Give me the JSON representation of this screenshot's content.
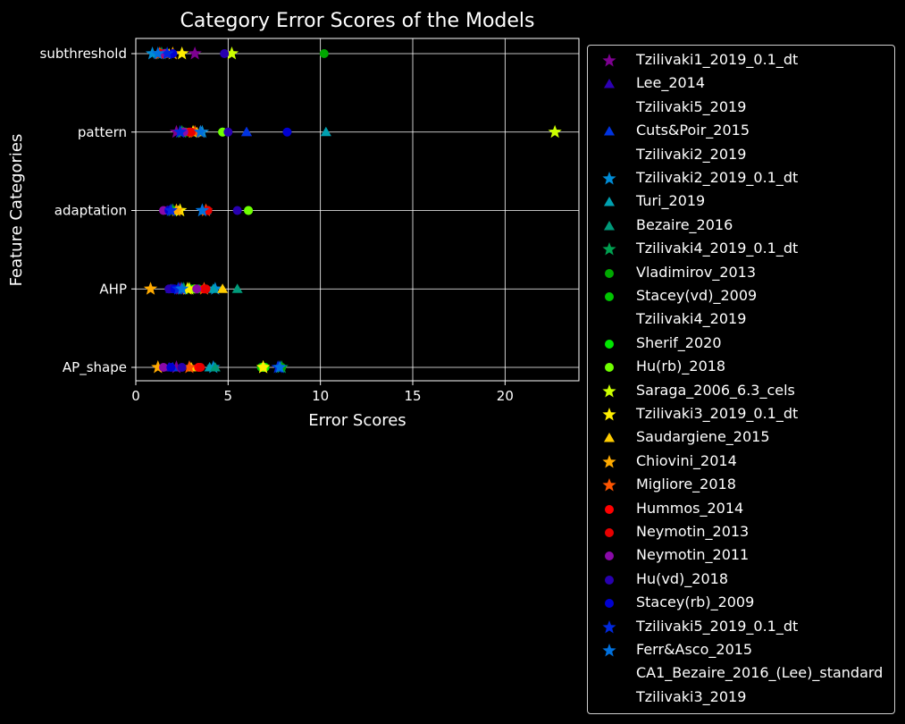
{
  "chart_data": {
    "type": "scatter",
    "title": "Category Error Scores of the Models",
    "xlabel": "Error Scores",
    "ylabel": "Feature Categories",
    "xlim": [
      0,
      24
    ],
    "xticks": [
      0,
      5,
      10,
      15,
      20
    ],
    "categories": [
      "AP_shape",
      "AHP",
      "adaptation",
      "pattern",
      "subthreshold"
    ],
    "grid": true,
    "legend_position": "outside-right",
    "series": [
      {
        "name": "Tzilivaki1_2019_0.1_dt",
        "marker": "star",
        "color": "#7d0090",
        "values": [
          2.2,
          2.4,
          2.0,
          2.2,
          3.2
        ]
      },
      {
        "name": "Lee_2014",
        "marker": "triangle",
        "color": "#2d00b4",
        "values": [
          1.8,
          2.0,
          1.7,
          6.0,
          1.5
        ]
      },
      {
        "name": "Tzilivaki5_2019",
        "marker": "none",
        "color": "#000000",
        "values": [
          null,
          null,
          null,
          null,
          null
        ]
      },
      {
        "name": "Cuts&Poir_2015",
        "marker": "triangle",
        "color": "#0033e0",
        "values": [
          2.0,
          1.9,
          1.8,
          6.0,
          1.4
        ]
      },
      {
        "name": "Tzilivaki2_2019",
        "marker": "none",
        "color": "#000000",
        "values": [
          null,
          null,
          null,
          null,
          null
        ]
      },
      {
        "name": "Tzilivaki2_2019_0.1_dt",
        "marker": "star",
        "color": "#008cd6",
        "values": [
          4.2,
          4.3,
          3.6,
          3.6,
          0.9
        ]
      },
      {
        "name": "Turi_2019",
        "marker": "triangle",
        "color": "#00a0b0",
        "values": [
          4.0,
          4.2,
          3.8,
          10.3,
          1.2
        ]
      },
      {
        "name": "Bezaire_2016",
        "marker": "triangle",
        "color": "#009a7a",
        "values": [
          4.3,
          5.5,
          1.9,
          2.6,
          1.6
        ]
      },
      {
        "name": "Tzilivaki4_2019_0.1_dt",
        "marker": "star",
        "color": "#00a050",
        "values": [
          7.9,
          2.6,
          2.0,
          2.5,
          1.4
        ]
      },
      {
        "name": "Vladimirov_2013",
        "marker": "circle",
        "color": "#00a800",
        "values": [
          7.9,
          3.0,
          2.0,
          2.6,
          10.2
        ]
      },
      {
        "name": "Stacey(vd)_2009",
        "marker": "circle",
        "color": "#00c400",
        "values": [
          6.8,
          3.4,
          2.1,
          2.7,
          1.3
        ]
      },
      {
        "name": "Tzilivaki4_2019",
        "marker": "none",
        "color": "#000000",
        "values": [
          null,
          null,
          null,
          null,
          null
        ]
      },
      {
        "name": "Sherif_2020",
        "marker": "circle",
        "color": "#00e600",
        "values": [
          7.0,
          3.2,
          6.1,
          4.7,
          1.6
        ]
      },
      {
        "name": "Hu(rb)_2018",
        "marker": "circle",
        "color": "#70ff00",
        "values": [
          6.9,
          3.2,
          6.1,
          4.7,
          1.6
        ]
      },
      {
        "name": "Saraga_2006_6.3_cels",
        "marker": "star",
        "color": "#ccff00",
        "values": [
          6.9,
          2.9,
          2.4,
          22.7,
          5.2
        ]
      },
      {
        "name": "Tzilivaki3_2019_0.1_dt",
        "marker": "star",
        "color": "#ffee00",
        "values": [
          6.9,
          2.8,
          2.4,
          3.1,
          2.5
        ]
      },
      {
        "name": "Saudargiene_2015",
        "marker": "triangle",
        "color": "#ffcc00",
        "values": [
          3.0,
          4.7,
          2.3,
          3.3,
          1.8
        ]
      },
      {
        "name": "Chiovini_2014",
        "marker": "star",
        "color": "#ffaa00",
        "values": [
          1.2,
          0.8,
          2.2,
          3.5,
          2.0
        ]
      },
      {
        "name": "Migliore_2018",
        "marker": "star",
        "color": "#ff5500",
        "values": [
          2.9,
          3.7,
          3.8,
          3.2,
          1.3
        ]
      },
      {
        "name": "Hummos_2014",
        "marker": "circle",
        "color": "#ff0000",
        "values": [
          3.4,
          3.7,
          3.9,
          2.9,
          1.4
        ]
      },
      {
        "name": "Neymotin_2013",
        "marker": "circle",
        "color": "#e80000",
        "values": [
          3.5,
          3.8,
          3.9,
          3.0,
          1.3
        ]
      },
      {
        "name": "Neymotin_2011",
        "marker": "circle",
        "color": "#8a0aa8",
        "values": [
          1.5,
          3.3,
          1.5,
          2.6,
          1.6
        ]
      },
      {
        "name": "Hu(vd)_2018",
        "marker": "circle",
        "color": "#2800b0",
        "values": [
          2.5,
          1.8,
          5.5,
          5.0,
          4.8
        ]
      },
      {
        "name": "Stacey(rb)_2009",
        "marker": "circle",
        "color": "#0000d0",
        "values": [
          1.9,
          2.1,
          1.8,
          8.2,
          2.0
        ]
      },
      {
        "name": "Tzilivaki5_2019_0.1_dt",
        "marker": "star",
        "color": "#0028dd",
        "values": [
          7.7,
          2.3,
          1.9,
          2.4,
          1.7
        ]
      },
      {
        "name": "Ferr&Asco_2015",
        "marker": "star",
        "color": "#0070dd",
        "values": [
          7.8,
          2.5,
          3.6,
          3.5,
          1.2
        ]
      },
      {
        "name": "CA1_Bezaire_2016_(Lee)_standard",
        "marker": "none",
        "color": "#000000",
        "values": [
          null,
          null,
          null,
          null,
          null
        ]
      },
      {
        "name": "Tzilivaki3_2019",
        "marker": "none",
        "color": "#000000",
        "values": [
          null,
          null,
          null,
          null,
          null
        ]
      }
    ]
  }
}
